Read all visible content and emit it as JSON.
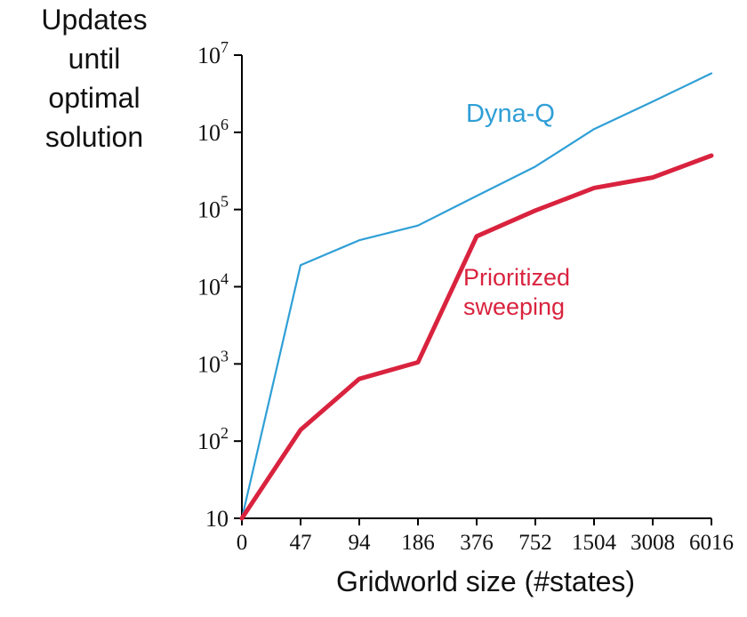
{
  "figure": {
    "background": "#ffffff",
    "axis_color": "#000000"
  },
  "chart_data": {
    "type": "line",
    "title": "",
    "xlabel": "Gridworld size (#states)",
    "ylabel": "Updates until optimal solution",
    "ylabel_display": "Updates\nuntil\noptimal\nsolution",
    "x_categories": [
      "0",
      "47",
      "94",
      "186",
      "376",
      "752",
      "1504",
      "3008",
      "6016"
    ],
    "x_axis_scale": "category-doubling",
    "y_scale": "log",
    "ylim": [
      10,
      10000000
    ],
    "y_ticks": [
      {
        "value": 10,
        "base": "10",
        "exp": ""
      },
      {
        "value": 100,
        "base": "10",
        "exp": "2"
      },
      {
        "value": 1000,
        "base": "10",
        "exp": "3"
      },
      {
        "value": 10000,
        "base": "10",
        "exp": "4"
      },
      {
        "value": 100000,
        "base": "10",
        "exp": "5"
      },
      {
        "value": 1000000,
        "base": "10",
        "exp": "6"
      },
      {
        "value": 10000000,
        "base": "10",
        "exp": "7"
      }
    ],
    "grid": false,
    "legend_position": "inline-annotations",
    "series": [
      {
        "name": "Dyna-Q",
        "color": "#2f9fd6",
        "stroke_width": 2.2,
        "values": [
          10,
          19000,
          40000,
          62000,
          150000,
          360000,
          1100000,
          2500000,
          5800000
        ]
      },
      {
        "name": "Prioritized sweeping",
        "color": "#d9233e",
        "stroke_width": 5,
        "values": [
          10,
          140,
          640,
          1050,
          45000,
          97000,
          190000,
          260000,
          500000
        ]
      }
    ],
    "annotations": [
      {
        "text": "Dyna-Q",
        "series": "Dyna-Q"
      },
      {
        "text": "Prioritized\nsweeping",
        "series": "Prioritized sweeping"
      }
    ]
  }
}
